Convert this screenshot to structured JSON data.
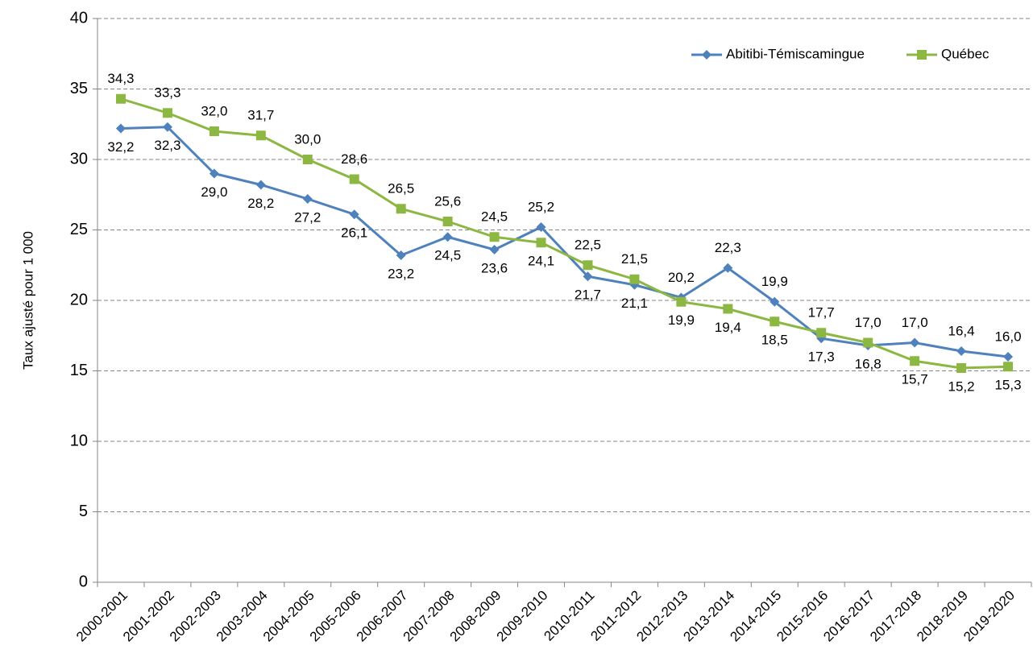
{
  "chart_data": {
    "type": "line",
    "y_label": "Taux ajusté pour 1 000",
    "categories": [
      "2000-2001",
      "2001-2002",
      "2002-2003",
      "2003-2004",
      "2004-2005",
      "2005-2006",
      "2006-2007",
      "2007-2008",
      "2008-2009",
      "2009-2010",
      "2010-2011",
      "2011-2012",
      "2012-2013",
      "2013-2014",
      "2014-2015",
      "2015-2016",
      "2016-2017",
      "2017-2018",
      "2018-2019",
      "2019-2020"
    ],
    "series": [
      {
        "name": "Abitibi-Témiscamingue",
        "color": "#4f81bd",
        "marker": "diamond",
        "values": [
          32.2,
          32.3,
          29.0,
          28.2,
          27.2,
          26.1,
          23.2,
          24.5,
          23.6,
          25.2,
          21.7,
          21.1,
          20.2,
          22.3,
          19.9,
          17.3,
          16.8,
          17.0,
          16.4,
          16.0
        ],
        "value_labels": [
          "32,2",
          "32,3",
          "29,0",
          "28,2",
          "27,2",
          "26,1",
          "23,2",
          "24,5",
          "23,6",
          "25,2",
          "21,7",
          "21,1",
          "20,2",
          "22,3",
          "19,9",
          "17,3",
          "16,8",
          "17,0",
          "16,4",
          "16,0"
        ]
      },
      {
        "name": "Québec",
        "color": "#8db743",
        "marker": "square",
        "values": [
          34.3,
          33.3,
          32.0,
          31.7,
          30.0,
          28.6,
          26.5,
          25.6,
          24.5,
          24.1,
          22.5,
          21.5,
          19.9,
          19.4,
          18.5,
          17.7,
          17.0,
          15.7,
          15.2,
          15.3
        ],
        "value_labels": [
          "34,3",
          "33,3",
          "32,0",
          "31,7",
          "30,0",
          "28,6",
          "26,5",
          "25,6",
          "24,5",
          "24,1",
          "22,5",
          "21,5",
          "19,9",
          "19,4",
          "18,5",
          "17,7",
          "17,0",
          "15,7",
          "15,2",
          "15,3"
        ]
      }
    ],
    "ylim": [
      0,
      40
    ],
    "yticks": [
      0,
      5,
      10,
      15,
      20,
      25,
      30,
      35,
      40
    ],
    "grid": true,
    "legend": "top-right"
  }
}
